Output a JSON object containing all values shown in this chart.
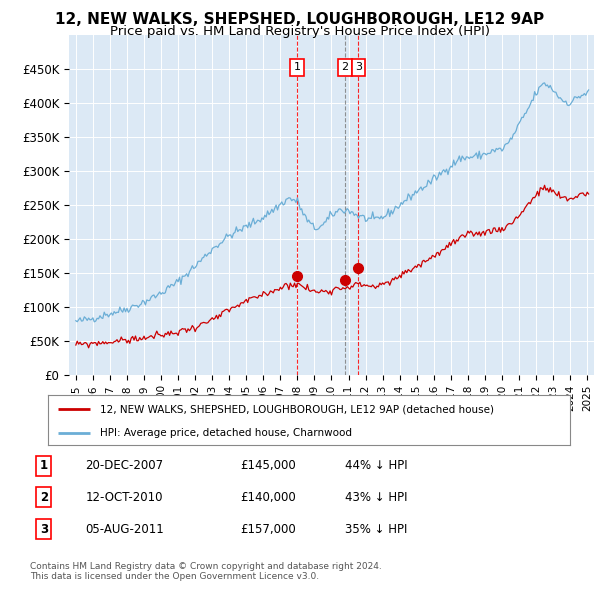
{
  "title": "12, NEW WALKS, SHEPSHED, LOUGHBOROUGH, LE12 9AP",
  "subtitle": "Price paid vs. HM Land Registry's House Price Index (HPI)",
  "title_fontsize": 11,
  "subtitle_fontsize": 9.5,
  "plot_bg_color": "#dce9f5",
  "ylim": [
    0,
    500000
  ],
  "yticks": [
    0,
    50000,
    100000,
    150000,
    200000,
    250000,
    300000,
    350000,
    400000,
    450000
  ],
  "ytick_labels": [
    "£0",
    "£50K",
    "£100K",
    "£150K",
    "£200K",
    "£250K",
    "£300K",
    "£350K",
    "£400K",
    "£450K"
  ],
  "hpi_color": "#6baed6",
  "red_color": "#cc0000",
  "transactions": [
    {
      "year": 2007.97,
      "price": 145000,
      "label": "1",
      "date": "20-DEC-2007",
      "pct": "44%",
      "vline_color": "red"
    },
    {
      "year": 2010.78,
      "price": 140000,
      "label": "2",
      "date": "12-OCT-2010",
      "pct": "43%",
      "vline_color": "gray"
    },
    {
      "year": 2011.58,
      "price": 157000,
      "label": "3",
      "date": "05-AUG-2011",
      "pct": "35%",
      "vline_color": "red"
    }
  ],
  "legend_property": "12, NEW WALKS, SHEPSHED, LOUGHBOROUGH, LE12 9AP (detached house)",
  "legend_hpi": "HPI: Average price, detached house, Charnwood",
  "footer": "Contains HM Land Registry data © Crown copyright and database right 2024.\nThis data is licensed under the Open Government Licence v3.0."
}
